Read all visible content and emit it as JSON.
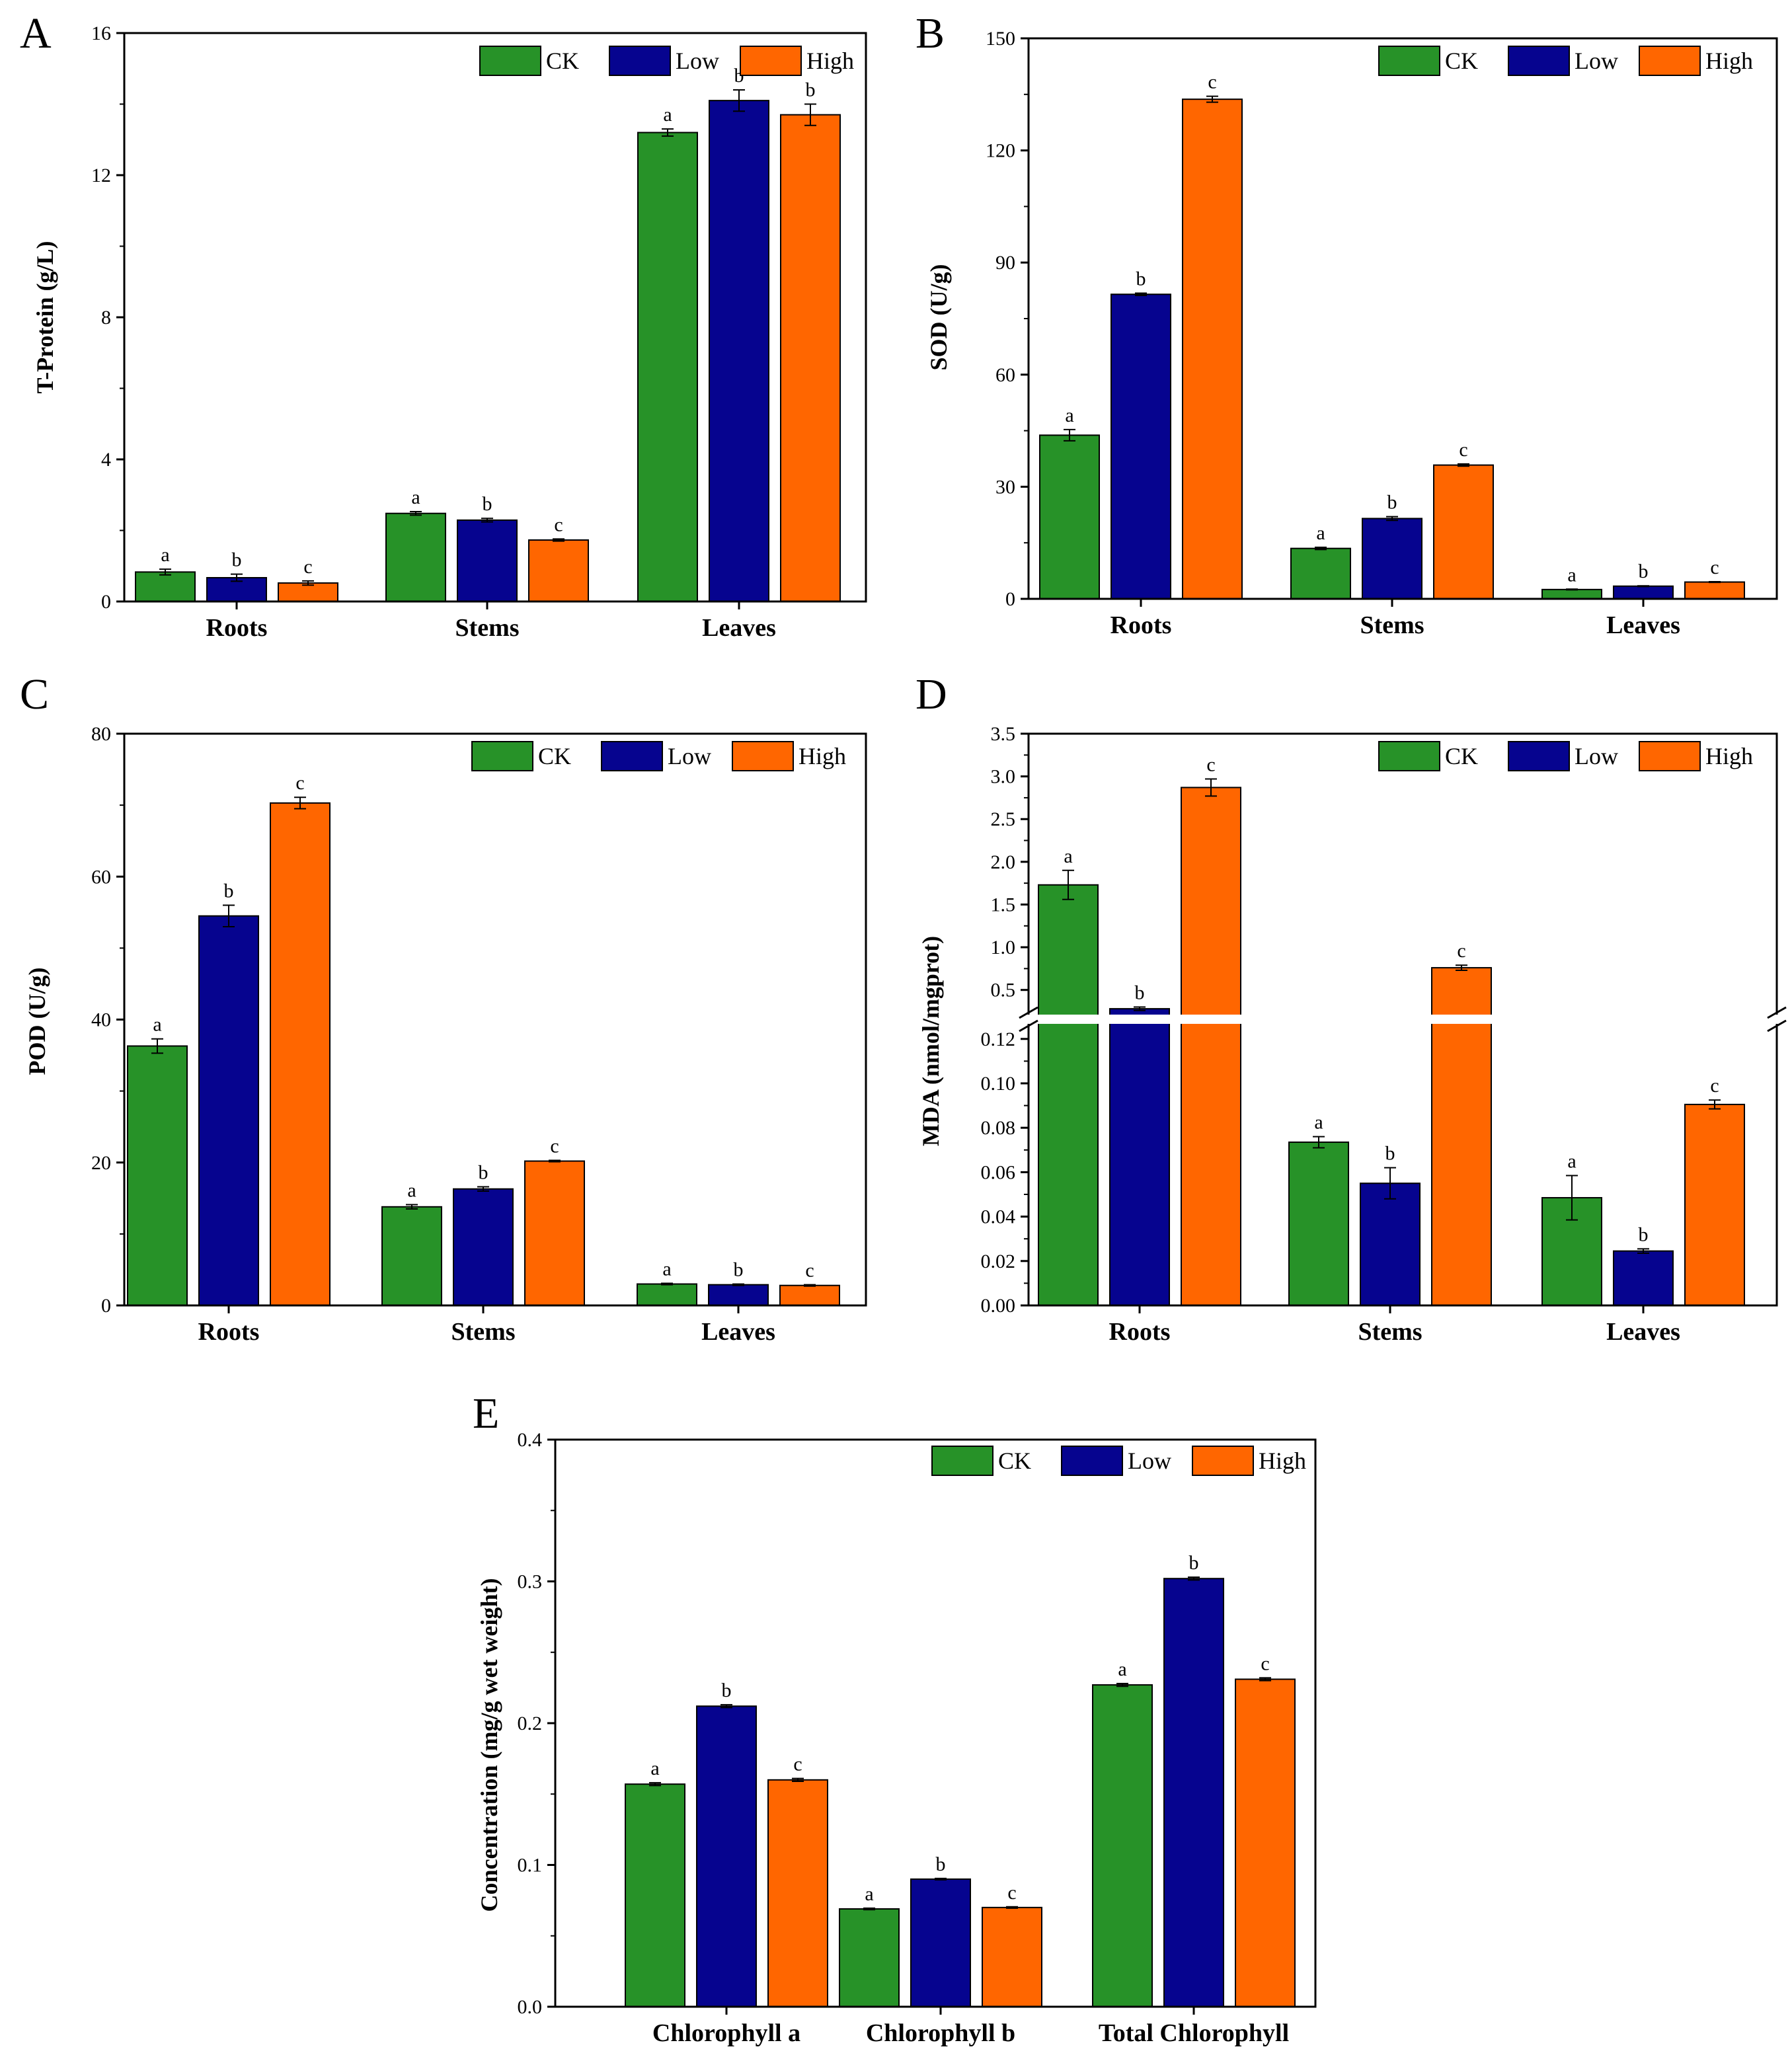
{
  "legend": {
    "labels": [
      "CK",
      "Low",
      "High"
    ],
    "colors": [
      "#279228",
      "#06048f",
      "#ff6600"
    ]
  },
  "chart_data": [
    {
      "panel": "A",
      "type": "bar",
      "ylabel": "T-Protein (g/L)",
      "categories": [
        "Roots",
        "Stems",
        "Leaves"
      ],
      "ylim": [
        0,
        16
      ],
      "yticks": [
        0,
        4,
        8,
        12,
        16
      ],
      "series": [
        {
          "name": "CK",
          "values": [
            0.83,
            2.48,
            13.2
          ],
          "errors": [
            0.08,
            0.05,
            0.1
          ],
          "letters": [
            "a",
            "a",
            "a"
          ]
        },
        {
          "name": "Low",
          "values": [
            0.67,
            2.29,
            14.1
          ],
          "errors": [
            0.1,
            0.05,
            0.3
          ],
          "letters": [
            "b",
            "b",
            "b"
          ]
        },
        {
          "name": "High",
          "values": [
            0.52,
            1.73,
            13.7
          ],
          "errors": [
            0.06,
            0.03,
            0.3
          ],
          "letters": [
            "c",
            "c",
            "b"
          ]
        }
      ]
    },
    {
      "panel": "B",
      "type": "bar",
      "ylabel": "SOD (U/g)",
      "categories": [
        "Roots",
        "Stems",
        "Leaves"
      ],
      "ylim": [
        0,
        150
      ],
      "yticks": [
        0,
        30,
        60,
        90,
        120,
        150
      ],
      "series": [
        {
          "name": "CK",
          "values": [
            43.8,
            13.5,
            2.5
          ],
          "errors": [
            1.5,
            0.3,
            0.1
          ],
          "letters": [
            "a",
            "a",
            "a"
          ]
        },
        {
          "name": "Low",
          "values": [
            81.5,
            21.5,
            3.4
          ],
          "errors": [
            0.3,
            0.5,
            0.1
          ],
          "letters": [
            "b",
            "b",
            "b"
          ]
        },
        {
          "name": "High",
          "values": [
            133.7,
            35.8,
            4.5
          ],
          "errors": [
            0.8,
            0.3,
            0.1
          ],
          "letters": [
            "c",
            "c",
            "c"
          ]
        }
      ]
    },
    {
      "panel": "C",
      "type": "bar",
      "ylabel": "POD (U/g)",
      "categories": [
        "Roots",
        "Stems",
        "Leaves"
      ],
      "ylim": [
        0,
        80
      ],
      "yticks": [
        0,
        20,
        40,
        60,
        80
      ],
      "series": [
        {
          "name": "CK",
          "values": [
            36.3,
            13.8,
            3.0
          ],
          "errors": [
            1.0,
            0.3,
            0.1
          ],
          "letters": [
            "a",
            "a",
            "a"
          ]
        },
        {
          "name": "Low",
          "values": [
            54.5,
            16.3,
            2.9
          ],
          "errors": [
            1.5,
            0.3,
            0.1
          ],
          "letters": [
            "b",
            "b",
            "b"
          ]
        },
        {
          "name": "High",
          "values": [
            70.3,
            20.2,
            2.8
          ],
          "errors": [
            0.8,
            0.1,
            0.1
          ],
          "letters": [
            "c",
            "c",
            "c"
          ]
        }
      ]
    },
    {
      "panel": "D",
      "type": "bar",
      "ylabel": "MDA (nmol/mgprot)",
      "categories": [
        "Roots",
        "Stems",
        "Leaves"
      ],
      "lower_ylim": [
        0,
        0.125
      ],
      "upper_ylim": [
        0.25,
        3.5
      ],
      "lower_ticks": [
        "0.00",
        "0.02",
        "0.04",
        "0.06",
        "0.08",
        "0.10",
        "0.12"
      ],
      "upper_ticks": [
        "0.5",
        "1.0",
        "1.5",
        "2.0",
        "2.5",
        "3.0",
        "3.5"
      ],
      "series": [
        {
          "name": "CK",
          "values": [
            1.73,
            0.0735,
            0.0485
          ],
          "errors": [
            0.17,
            0.0025,
            0.01
          ],
          "letters": [
            "a",
            "a",
            "a"
          ]
        },
        {
          "name": "Low",
          "values": [
            0.28,
            0.055,
            0.0245
          ],
          "errors": [
            0.02,
            0.007,
            0.001
          ],
          "letters": [
            "b",
            "b",
            "b"
          ]
        },
        {
          "name": "High",
          "values": [
            2.87,
            0.76,
            0.0905
          ],
          "errors": [
            0.1,
            0.03,
            0.002
          ],
          "letters": [
            "c",
            "c",
            "c"
          ]
        }
      ]
    },
    {
      "panel": "E",
      "type": "bar",
      "ylabel": "Concentration (mg/g wet weight)",
      "categories": [
        "Chlorophyll a",
        "Chlorophyll b",
        "Total Chlorophyll"
      ],
      "ylim": [
        0,
        0.4
      ],
      "yticks": [
        "0.0",
        "0.1",
        "0.2",
        "0.3",
        "0.4"
      ],
      "series": [
        {
          "name": "CK",
          "values": [
            0.157,
            0.069,
            0.227
          ],
          "errors": [
            0.001,
            0.0005,
            0.001
          ],
          "letters": [
            "a",
            "a",
            "a"
          ]
        },
        {
          "name": "Low",
          "values": [
            0.212,
            0.09,
            0.302
          ],
          "errors": [
            0.001,
            0.0005,
            0.001
          ],
          "letters": [
            "b",
            "b",
            "b"
          ]
        },
        {
          "name": "High",
          "values": [
            0.16,
            0.07,
            0.231
          ],
          "errors": [
            0.001,
            0.0005,
            0.001
          ],
          "letters": [
            "c",
            "c",
            "c"
          ]
        }
      ]
    }
  ]
}
